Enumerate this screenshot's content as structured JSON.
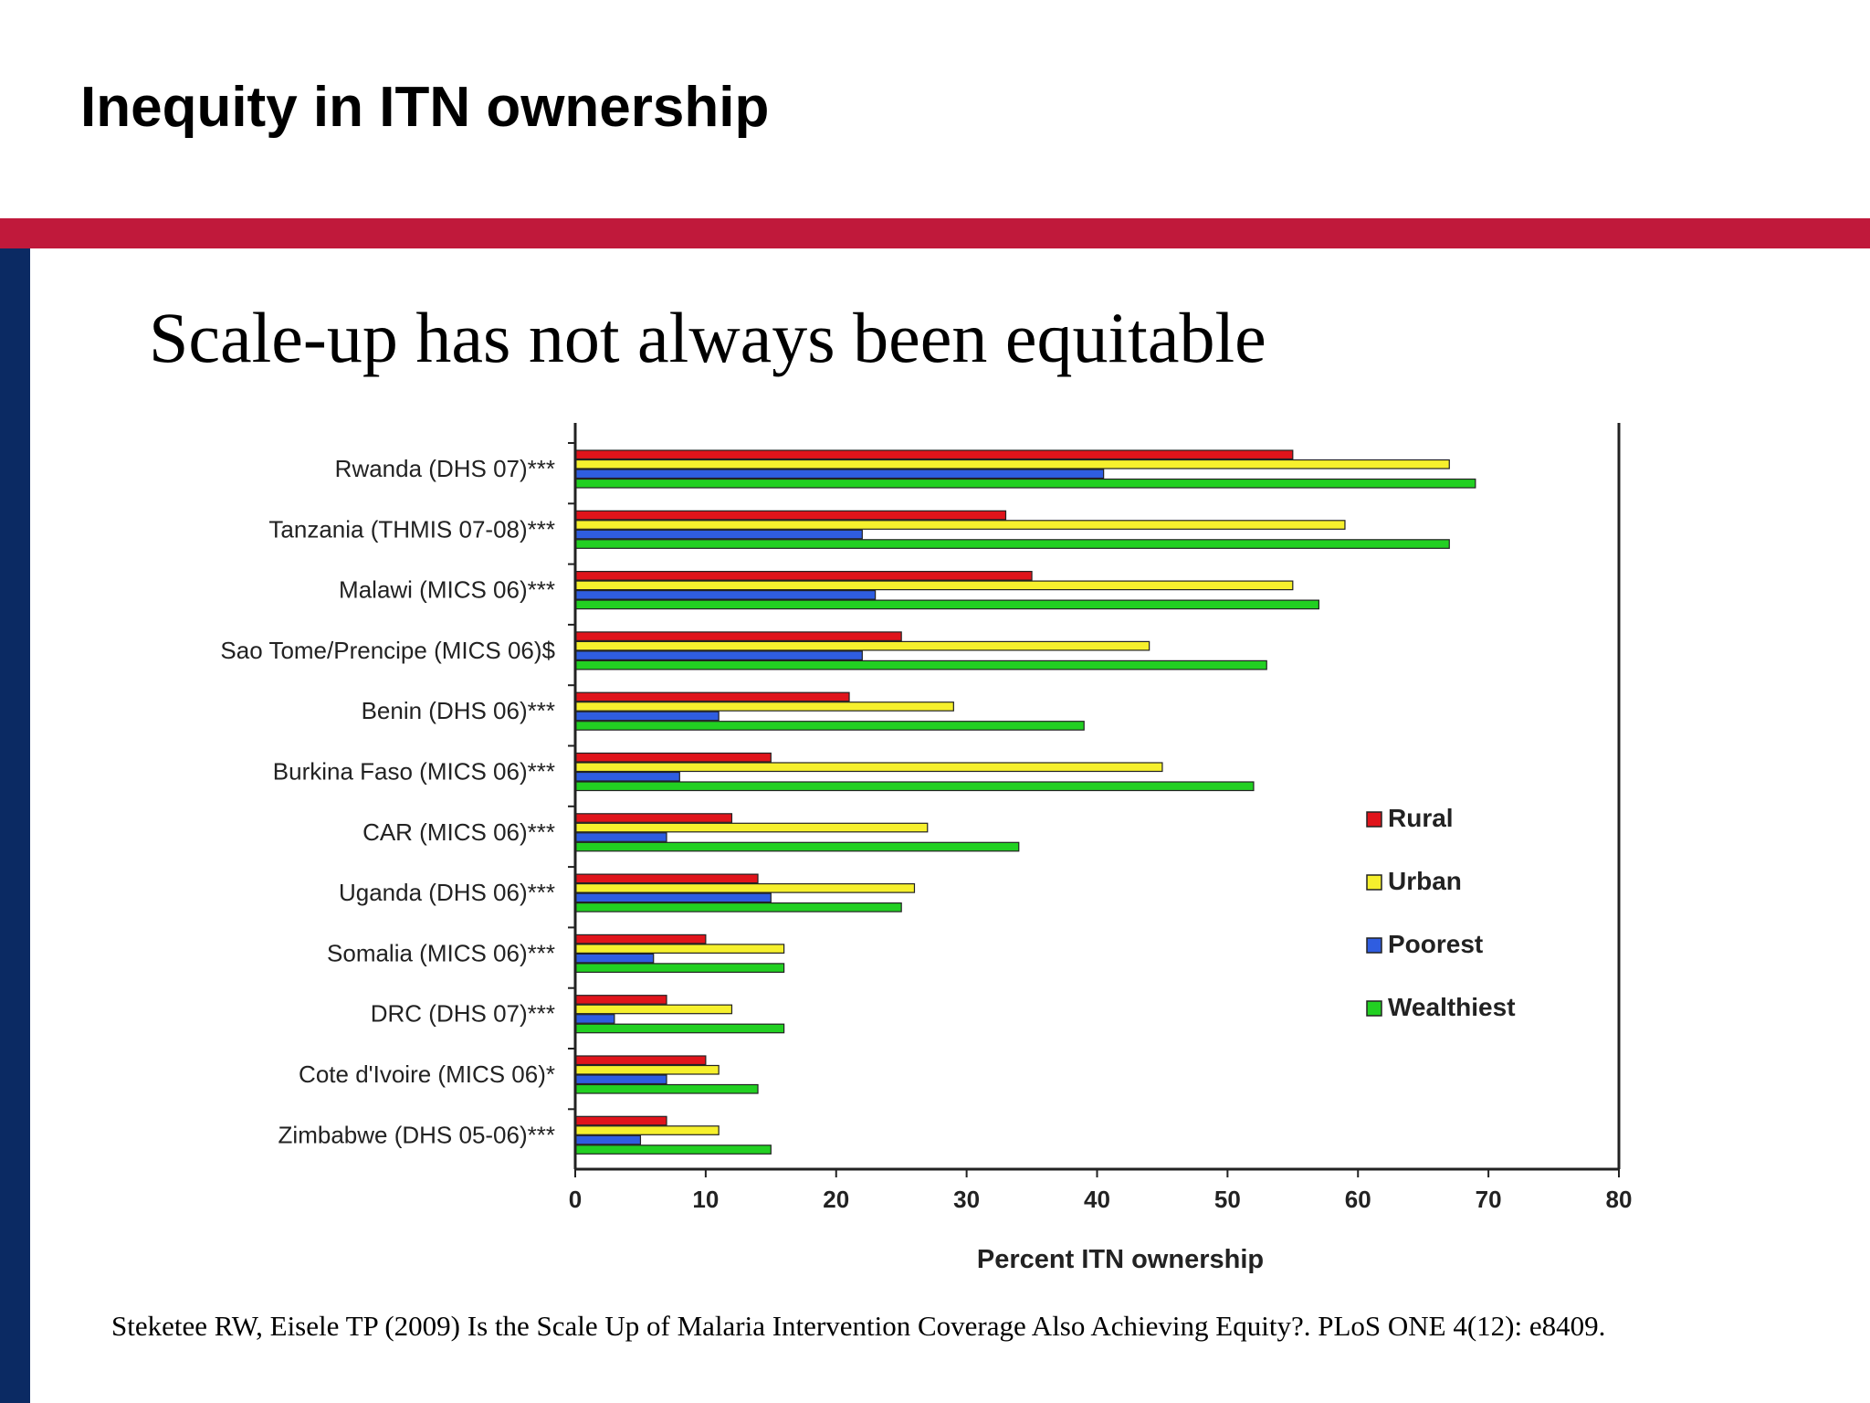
{
  "slide": {
    "title": "Inequity in ITN ownership",
    "subtitle": "Scale-up has not always been equitable",
    "citation": "Steketee RW, Eisele TP (2009) Is the Scale Up of Malaria Intervention Coverage Also Achieving Equity?. PLoS ONE 4(12): e8409.",
    "colors": {
      "band": "#c0193b",
      "side_bar": "#0b2a63"
    }
  },
  "chart_data": {
    "type": "bar",
    "orientation": "horizontal",
    "categories": [
      "Rwanda (DHS 07)***",
      "Tanzania (THMIS 07-08)***",
      "Malawi (MICS 06)***",
      "Sao Tome/Prencipe (MICS 06)$",
      "Benin (DHS 06)***",
      "Burkina Faso (MICS 06)***",
      "CAR (MICS 06)***",
      "Uganda (DHS 06)***",
      "Somalia (MICS 06)***",
      "DRC (DHS 07)***",
      "Cote d'Ivoire (MICS 06)*",
      "Zimbabwe (DHS 05-06)***"
    ],
    "series": [
      {
        "name": "Rural",
        "color": "#e0141b",
        "values": [
          55,
          33,
          35,
          25,
          21,
          15,
          12,
          14,
          10,
          7,
          10,
          7
        ]
      },
      {
        "name": "Urban",
        "color": "#f6f02d",
        "values": [
          67,
          59,
          55,
          44,
          29,
          45,
          27,
          26,
          16,
          12,
          11,
          11
        ]
      },
      {
        "name": "Poorest",
        "color": "#2f5de0",
        "values": [
          40.5,
          22,
          23,
          22,
          11,
          8,
          7,
          15,
          6,
          3,
          7,
          5
        ]
      },
      {
        "name": "Wealthiest",
        "color": "#22d022",
        "values": [
          69,
          67,
          57,
          53,
          39,
          52,
          34,
          25,
          16,
          16,
          14,
          15
        ]
      }
    ],
    "xlabel": "Percent ITN ownership",
    "xlim": [
      0,
      80
    ],
    "xticks": [
      0,
      10,
      20,
      30,
      40,
      50,
      60,
      70,
      80
    ],
    "legend_position": "right",
    "grid": false
  }
}
